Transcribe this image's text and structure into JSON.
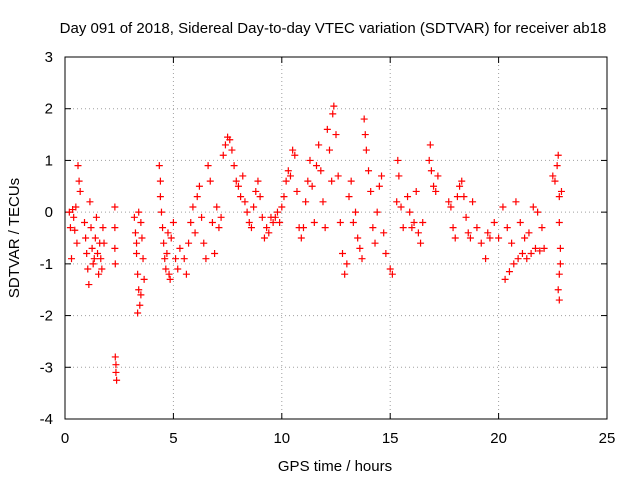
{
  "chart_data": {
    "type": "scatter",
    "title": "Day 091 of 2018, Sidereal Day-to-day VTEC variation (SDTVAR) for receiver ab18",
    "xlabel": "GPS time / hours",
    "ylabel": "SDTVAR / TECUs",
    "xlim": [
      0,
      25
    ],
    "ylim": [
      -4,
      3
    ],
    "x_ticks": [
      "0",
      "5",
      "10",
      "15",
      "20",
      "25"
    ],
    "y_ticks": [
      "-4",
      "-3",
      "-2",
      "-1",
      "0",
      "1",
      "2",
      "3"
    ],
    "grid": true,
    "marker": "+",
    "series": [
      {
        "name": "SDTVAR",
        "color": "#ff0000",
        "points": [
          [
            0.2,
            0.0
          ],
          [
            0.25,
            -0.3
          ],
          [
            0.3,
            -0.9
          ],
          [
            0.35,
            0.05
          ],
          [
            0.4,
            -0.1
          ],
          [
            0.45,
            -0.35
          ],
          [
            0.5,
            0.1
          ],
          [
            0.55,
            -0.6
          ],
          [
            0.6,
            0.9
          ],
          [
            0.65,
            0.6
          ],
          [
            0.7,
            0.4
          ],
          [
            0.9,
            -0.2
          ],
          [
            0.95,
            -0.5
          ],
          [
            1.0,
            -0.8
          ],
          [
            1.05,
            -1.1
          ],
          [
            1.1,
            -1.4
          ],
          [
            1.15,
            0.2
          ],
          [
            1.2,
            -0.3
          ],
          [
            1.25,
            -0.7
          ],
          [
            1.3,
            -1.0
          ],
          [
            1.35,
            -0.9
          ],
          [
            1.4,
            -0.5
          ],
          [
            1.45,
            -0.1
          ],
          [
            1.5,
            -0.8
          ],
          [
            1.55,
            -1.2
          ],
          [
            1.6,
            -0.6
          ],
          [
            1.65,
            -0.9
          ],
          [
            1.7,
            -1.1
          ],
          [
            1.75,
            -0.3
          ],
          [
            1.8,
            -0.6
          ],
          [
            2.3,
            0.1
          ],
          [
            2.3,
            -0.3
          ],
          [
            2.3,
            -0.7
          ],
          [
            2.32,
            -1.0
          ],
          [
            2.32,
            -2.8
          ],
          [
            2.35,
            -2.95
          ],
          [
            2.35,
            -3.1
          ],
          [
            2.38,
            -3.25
          ],
          [
            3.2,
            -0.1
          ],
          [
            3.25,
            -0.4
          ],
          [
            3.3,
            -0.8
          ],
          [
            3.35,
            -1.2
          ],
          [
            3.4,
            -1.5
          ],
          [
            3.45,
            -1.8
          ],
          [
            3.5,
            -1.6
          ],
          [
            3.5,
            -0.2
          ],
          [
            3.55,
            -0.5
          ],
          [
            3.6,
            -0.9
          ],
          [
            3.65,
            -1.3
          ],
          [
            3.35,
            -1.95
          ],
          [
            3.4,
            0.0
          ],
          [
            3.3,
            -0.6
          ],
          [
            4.35,
            0.9
          ],
          [
            4.4,
            0.6
          ],
          [
            4.4,
            0.3
          ],
          [
            4.45,
            0.0
          ],
          [
            4.5,
            -0.3
          ],
          [
            4.55,
            -0.6
          ],
          [
            4.6,
            -0.9
          ],
          [
            4.65,
            -1.1
          ],
          [
            4.7,
            -0.8
          ],
          [
            4.75,
            -0.4
          ],
          [
            4.8,
            -1.2
          ],
          [
            4.85,
            -1.3
          ],
          [
            4.9,
            -0.5
          ],
          [
            5.0,
            -0.2
          ],
          [
            5.1,
            -0.9
          ],
          [
            5.2,
            -1.1
          ],
          [
            5.3,
            -0.7
          ],
          [
            5.5,
            -0.9
          ],
          [
            5.6,
            -1.2
          ],
          [
            5.7,
            -0.6
          ],
          [
            5.8,
            -0.2
          ],
          [
            5.9,
            0.1
          ],
          [
            6.0,
            -0.4
          ],
          [
            6.1,
            0.3
          ],
          [
            6.2,
            0.5
          ],
          [
            6.3,
            -0.1
          ],
          [
            6.4,
            -0.6
          ],
          [
            6.5,
            -0.9
          ],
          [
            6.6,
            0.9
          ],
          [
            6.7,
            0.6
          ],
          [
            6.8,
            -0.2
          ],
          [
            6.9,
            -0.8
          ],
          [
            7.0,
            0.1
          ],
          [
            7.1,
            -0.3
          ],
          [
            7.2,
            -0.1
          ],
          [
            7.3,
            1.1
          ],
          [
            7.4,
            1.3
          ],
          [
            7.5,
            1.45
          ],
          [
            7.6,
            1.4
          ],
          [
            7.7,
            1.2
          ],
          [
            7.8,
            0.9
          ],
          [
            7.9,
            0.6
          ],
          [
            8.0,
            0.5
          ],
          [
            8.1,
            0.3
          ],
          [
            8.2,
            0.7
          ],
          [
            8.3,
            0.2
          ],
          [
            8.4,
            0.0
          ],
          [
            8.5,
            -0.2
          ],
          [
            8.6,
            -0.3
          ],
          [
            8.7,
            0.1
          ],
          [
            8.8,
            0.4
          ],
          [
            8.9,
            0.6
          ],
          [
            9.0,
            0.3
          ],
          [
            9.1,
            -0.1
          ],
          [
            9.2,
            -0.5
          ],
          [
            9.3,
            -0.3
          ],
          [
            9.4,
            -0.4
          ],
          [
            9.5,
            -0.1
          ],
          [
            9.6,
            -0.2
          ],
          [
            9.7,
            -0.1
          ],
          [
            9.8,
            0.0
          ],
          [
            9.9,
            -0.2
          ],
          [
            10.0,
            0.1
          ],
          [
            10.1,
            0.3
          ],
          [
            10.2,
            0.6
          ],
          [
            10.3,
            0.8
          ],
          [
            10.4,
            0.7
          ],
          [
            10.5,
            1.2
          ],
          [
            10.6,
            1.1
          ],
          [
            10.7,
            0.4
          ],
          [
            10.8,
            -0.3
          ],
          [
            10.9,
            -0.5
          ],
          [
            11.0,
            -0.3
          ],
          [
            11.1,
            0.2
          ],
          [
            11.2,
            0.6
          ],
          [
            11.3,
            1.0
          ],
          [
            11.4,
            0.5
          ],
          [
            11.5,
            -0.2
          ],
          [
            11.6,
            0.9
          ],
          [
            11.7,
            1.3
          ],
          [
            11.8,
            0.8
          ],
          [
            11.9,
            0.2
          ],
          [
            12.0,
            -0.3
          ],
          [
            12.1,
            1.6
          ],
          [
            12.2,
            1.2
          ],
          [
            12.3,
            0.6
          ],
          [
            12.35,
            1.9
          ],
          [
            12.4,
            2.05
          ],
          [
            12.5,
            1.5
          ],
          [
            12.6,
            0.7
          ],
          [
            12.7,
            -0.2
          ],
          [
            12.8,
            -0.8
          ],
          [
            12.9,
            -1.2
          ],
          [
            13.0,
            -1.0
          ],
          [
            13.1,
            0.3
          ],
          [
            13.2,
            0.6
          ],
          [
            13.3,
            -0.2
          ],
          [
            13.4,
            0.0
          ],
          [
            13.5,
            -0.5
          ],
          [
            13.6,
            -0.7
          ],
          [
            13.7,
            -0.9
          ],
          [
            13.8,
            1.8
          ],
          [
            13.85,
            1.5
          ],
          [
            13.9,
            1.2
          ],
          [
            14.0,
            0.8
          ],
          [
            14.1,
            0.4
          ],
          [
            14.2,
            -0.3
          ],
          [
            14.3,
            -0.6
          ],
          [
            14.4,
            0.0
          ],
          [
            14.5,
            0.5
          ],
          [
            14.6,
            0.7
          ],
          [
            14.7,
            -0.4
          ],
          [
            14.8,
            -0.8
          ],
          [
            15.0,
            -1.1
          ],
          [
            15.1,
            -1.2
          ],
          [
            15.3,
            0.2
          ],
          [
            15.35,
            1.0
          ],
          [
            15.4,
            0.7
          ],
          [
            15.5,
            0.1
          ],
          [
            15.6,
            -0.3
          ],
          [
            15.8,
            0.3
          ],
          [
            15.9,
            0.0
          ],
          [
            16.0,
            -0.3
          ],
          [
            16.1,
            -0.2
          ],
          [
            16.2,
            0.4
          ],
          [
            16.3,
            -0.4
          ],
          [
            16.4,
            -0.6
          ],
          [
            16.5,
            -0.2
          ],
          [
            16.8,
            1.0
          ],
          [
            16.85,
            1.3
          ],
          [
            16.9,
            0.8
          ],
          [
            17.0,
            0.5
          ],
          [
            17.1,
            0.4
          ],
          [
            17.2,
            0.7
          ],
          [
            17.7,
            0.2
          ],
          [
            17.8,
            0.1
          ],
          [
            17.9,
            -0.3
          ],
          [
            18.0,
            -0.5
          ],
          [
            18.1,
            0.3
          ],
          [
            18.2,
            0.5
          ],
          [
            18.3,
            0.6
          ],
          [
            18.4,
            0.3
          ],
          [
            18.5,
            -0.1
          ],
          [
            18.6,
            -0.4
          ],
          [
            18.7,
            -0.5
          ],
          [
            18.8,
            0.2
          ],
          [
            19.0,
            -0.3
          ],
          [
            19.2,
            -0.6
          ],
          [
            19.4,
            -0.9
          ],
          [
            19.5,
            -0.4
          ],
          [
            19.6,
            -0.5
          ],
          [
            19.8,
            -0.2
          ],
          [
            20.0,
            -0.5
          ],
          [
            20.2,
            0.1
          ],
          [
            20.4,
            -0.3
          ],
          [
            20.6,
            -0.6
          ],
          [
            20.8,
            0.2
          ],
          [
            21.0,
            -0.2
          ],
          [
            21.2,
            -0.5
          ],
          [
            21.4,
            -0.4
          ],
          [
            21.6,
            0.1
          ],
          [
            21.8,
            0.0
          ],
          [
            22.0,
            -0.3
          ],
          [
            20.3,
            -1.3
          ],
          [
            20.5,
            -1.15
          ],
          [
            20.7,
            -1.0
          ],
          [
            20.9,
            -0.9
          ],
          [
            21.1,
            -0.8
          ],
          [
            21.3,
            -0.9
          ],
          [
            21.5,
            -0.8
          ],
          [
            21.7,
            -0.7
          ],
          [
            21.9,
            -0.75
          ],
          [
            22.1,
            -0.7
          ],
          [
            22.5,
            0.7
          ],
          [
            22.6,
            0.6
          ],
          [
            22.7,
            0.9
          ],
          [
            22.75,
            1.1
          ],
          [
            22.8,
            0.3
          ],
          [
            22.8,
            -0.2
          ],
          [
            22.85,
            -0.7
          ],
          [
            22.8,
            -1.2
          ],
          [
            22.75,
            -1.5
          ],
          [
            22.8,
            -1.7
          ],
          [
            22.85,
            -1.0
          ],
          [
            22.9,
            0.4
          ]
        ]
      }
    ]
  }
}
